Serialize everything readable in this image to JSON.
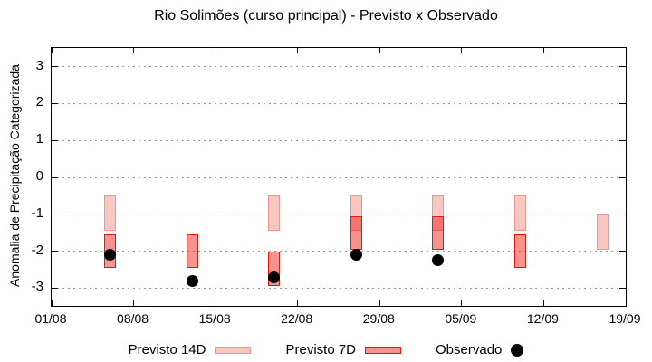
{
  "title": "Rio Solimões (curso principal) - Previsto x Observado",
  "y_axis": {
    "label": "Anomalia de Precipitação Categorizada",
    "tick_values": [
      3,
      2,
      1,
      0,
      -1,
      -2,
      -3
    ],
    "range": [
      -3.5,
      3.5
    ]
  },
  "x_axis": {
    "tick_labels": [
      "01/08",
      "08/08",
      "15/08",
      "22/08",
      "29/08",
      "05/09",
      "12/09",
      "19/09"
    ],
    "tick_days": [
      0,
      7,
      14,
      21,
      28,
      35,
      42,
      49
    ]
  },
  "legend": {
    "previsto14_label": "Previsto 14D",
    "previsto7_label": "Previsto 7D",
    "observado_label": "Observado"
  },
  "colors": {
    "p14_fill": "#f9c7c2",
    "p14_border": "#f0968c",
    "p7_fill": "rgba(237,30,20,0.48)",
    "p7_border": "#e6170c",
    "observado": "#000000",
    "grid": "#999999",
    "frame": "#000000"
  },
  "chart_data": {
    "type": "bar",
    "title": "Rio Solimões (curso principal) - Previsto x Observado",
    "xlabel": "",
    "ylabel": "Anomalia de Precipitação Categorizada",
    "ylim": [
      -3.5,
      3.5
    ],
    "grid": "dotted horizontal",
    "legend_position": "bottom center",
    "x_tick_labels": [
      "01/08",
      "08/08",
      "15/08",
      "22/08",
      "29/08",
      "05/09",
      "12/09",
      "19/09"
    ],
    "series_names": [
      "Previsto 14D",
      "Previsto 7D",
      "Observado"
    ],
    "groups": [
      {
        "date": "06/08",
        "day": 5,
        "previsto14": [
          -0.5,
          -1.45
        ],
        "previsto7": [
          -1.55,
          -2.45
        ],
        "observado": -2.1
      },
      {
        "date": "13/08",
        "day": 12,
        "previsto14": null,
        "previsto7": [
          -1.55,
          -2.45
        ],
        "observado": -2.8
      },
      {
        "date": "20/08",
        "day": 19,
        "previsto14": [
          -0.5,
          -1.45
        ],
        "previsto7": [
          -2.0,
          -2.95
        ],
        "observado": -2.7
      },
      {
        "date": "27/08",
        "day": 26,
        "previsto14": [
          -0.5,
          -1.45
        ],
        "previsto7": [
          -1.05,
          -1.95
        ],
        "observado": -2.1
      },
      {
        "date": "03/09",
        "day": 33,
        "previsto14": [
          -0.5,
          -1.45
        ],
        "previsto7": [
          -1.05,
          -1.95
        ],
        "observado": -2.25
      },
      {
        "date": "10/09",
        "day": 40,
        "previsto14": [
          -0.5,
          -1.45
        ],
        "previsto7": [
          -1.55,
          -2.45
        ],
        "observado": null
      },
      {
        "date": "17/09",
        "day": 47,
        "previsto14": [
          -1.0,
          -1.95
        ],
        "previsto7": null,
        "observado": null
      }
    ]
  }
}
